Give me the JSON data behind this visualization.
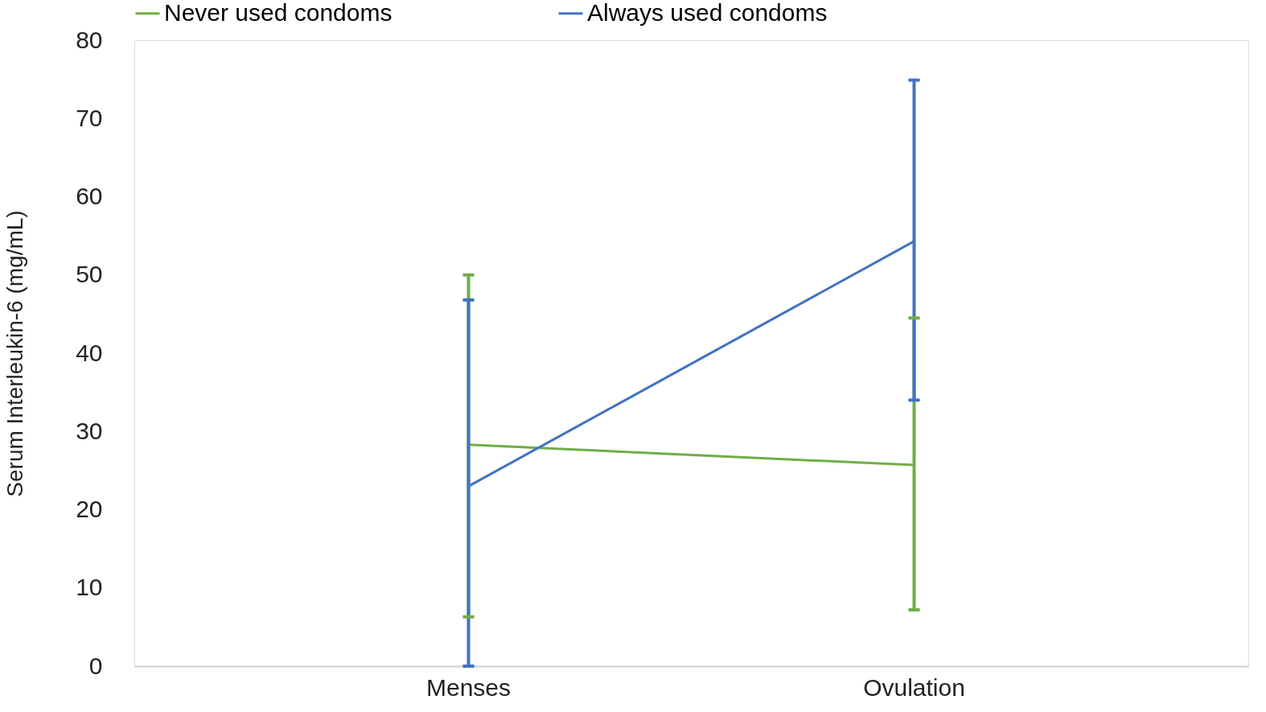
{
  "chart_data": {
    "type": "line",
    "ylabel": "Serum Interleukin-6 (mg/mL)",
    "categories": [
      "Menses",
      "Ovulation"
    ],
    "series": [
      {
        "name": "Never used condoms",
        "color": "#70ad47",
        "values": [
          28.3,
          25.7
        ],
        "errors": [
          [
            6.3,
            50
          ],
          [
            7.2,
            44.5
          ]
        ]
      },
      {
        "name": "Always used condoms",
        "color": "#4472c4",
        "values": [
          23,
          54.3
        ],
        "errors": [
          [
            0,
            46.8
          ],
          [
            34,
            74.9
          ]
        ]
      }
    ],
    "ylim": [
      0,
      80
    ],
    "yticks": [
      0,
      10,
      20,
      30,
      40,
      50,
      60,
      70,
      80
    ],
    "grid": false,
    "legend": "top",
    "marker": "none",
    "line_style": "solid"
  }
}
